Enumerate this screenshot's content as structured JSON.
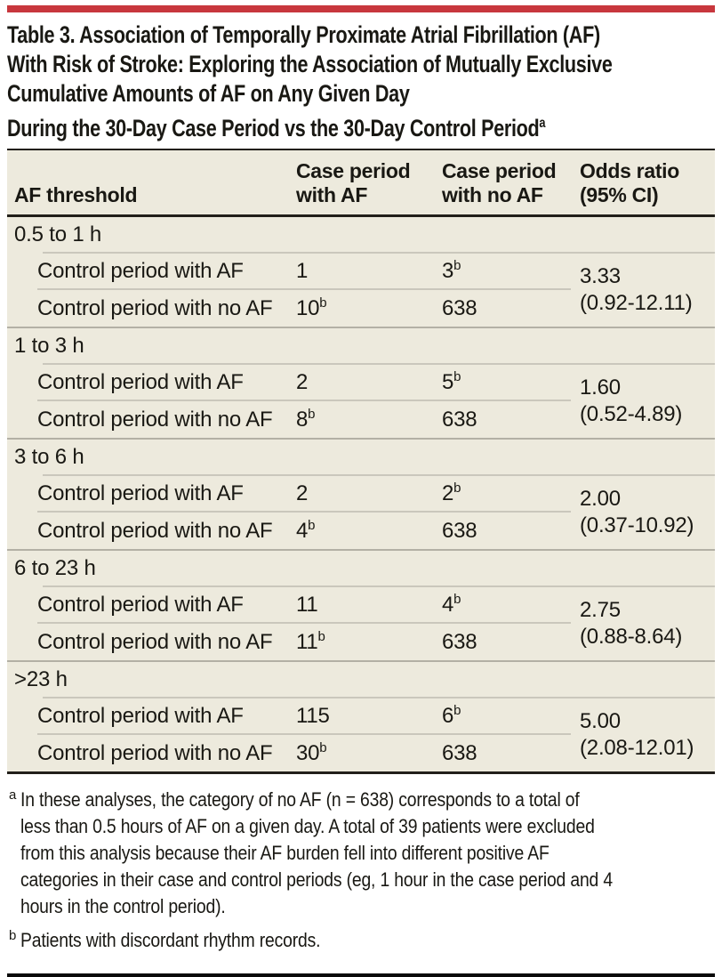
{
  "accent_color": "#C8373D",
  "panel_background": "#EDEADD",
  "title": {
    "text": "Table 3. Association of Temporally Proximate Atrial Fibrillation (AF)\nWith Risk of Stroke: Exploring the Association of Mutually Exclusive\nCumulative Amounts of AF on Any Given Day\nDuring the 30-Day Case Period vs the 30-Day Control Period",
    "marker": "a"
  },
  "table": {
    "columns": {
      "c1": "AF threshold",
      "c2": "Case period\nwith AF",
      "c3": "Case period\nwith no AF",
      "c4": "Odds ratio\n(95% CI)"
    },
    "groups": [
      {
        "label": "0.5 to 1 h",
        "rows": [
          {
            "label": "Control period with AF",
            "case_af": "1",
            "case_no_af": "3",
            "case_no_af_sup": "b"
          },
          {
            "label": "Control period with no AF",
            "case_af": "10",
            "case_af_sup": "b",
            "case_no_af": "638"
          }
        ],
        "odds_ratio": "3.33",
        "ci": "(0.92-12.11)"
      },
      {
        "label": "1 to 3 h",
        "rows": [
          {
            "label": "Control period with AF",
            "case_af": "2",
            "case_no_af": "5",
            "case_no_af_sup": "b"
          },
          {
            "label": "Control period with no AF",
            "case_af": "8",
            "case_af_sup": "b",
            "case_no_af": "638"
          }
        ],
        "odds_ratio": "1.60",
        "ci": "(0.52-4.89)"
      },
      {
        "label": "3 to 6 h",
        "rows": [
          {
            "label": "Control period with AF",
            "case_af": "2",
            "case_no_af": "2",
            "case_no_af_sup": "b"
          },
          {
            "label": "Control period with no AF",
            "case_af": "4",
            "case_af_sup": "b",
            "case_no_af": "638"
          }
        ],
        "odds_ratio": "2.00",
        "ci": "(0.37-10.92)"
      },
      {
        "label": "6 to 23 h",
        "rows": [
          {
            "label": "Control period with AF",
            "case_af": "11",
            "case_no_af": "4",
            "case_no_af_sup": "b"
          },
          {
            "label": "Control period with no AF",
            "case_af": "11",
            "case_af_sup": "b",
            "case_no_af": "638"
          }
        ],
        "odds_ratio": "2.75",
        "ci": "(0.88-8.64)"
      },
      {
        "label": ">23 h",
        "rows": [
          {
            "label": "Control period with AF",
            "case_af": "115",
            "case_no_af": "6",
            "case_no_af_sup": "b"
          },
          {
            "label": "Control period with no AF",
            "case_af": "30",
            "case_af_sup": "b",
            "case_no_af": "638"
          }
        ],
        "odds_ratio": "5.00",
        "ci": "(2.08-12.01)"
      }
    ]
  },
  "footnotes": [
    {
      "marker": "a",
      "text": "In these analyses, the category of no AF (n = 638) corresponds to a total of\nless than 0.5 hours of AF on a given day. A total of 39 patients were excluded\nfrom this analysis because their AF burden fell into different positive AF\ncategories in their case and control periods (eg, 1 hour in the case period and 4\nhours in the control period)."
    },
    {
      "marker": "b",
      "text": "Patients with discordant rhythm records."
    }
  ]
}
